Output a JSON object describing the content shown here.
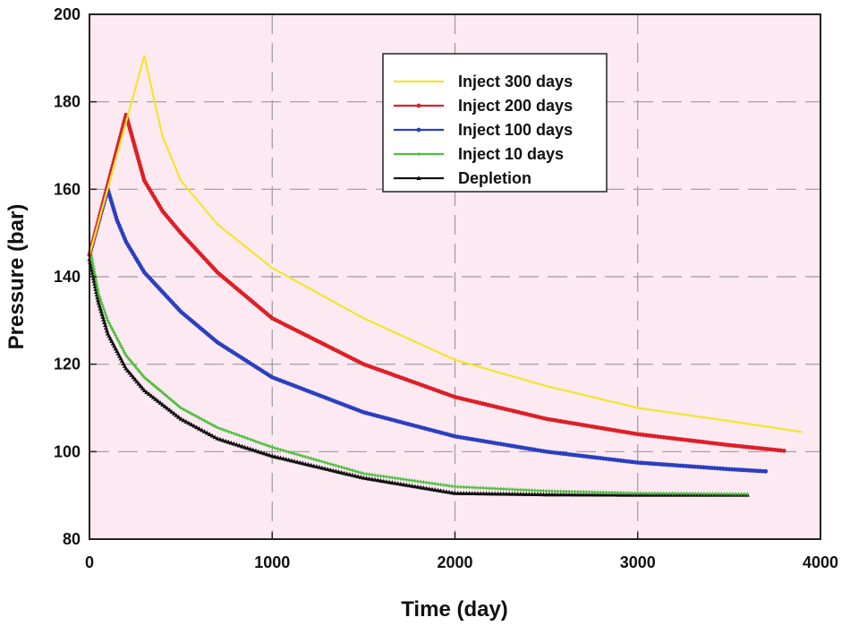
{
  "chart_data": {
    "type": "line",
    "title": "",
    "xlabel": "Time (day)",
    "ylabel": "Pressure (bar)",
    "xlim": [
      0,
      4000
    ],
    "ylim": [
      80,
      200
    ],
    "xticks": [
      0,
      1000,
      2000,
      3000,
      4000
    ],
    "yticks": [
      80,
      100,
      120,
      140,
      160,
      180,
      200
    ],
    "grid": true,
    "legend_position": "top-right",
    "plot_background": "#fde9f2",
    "series": [
      {
        "name": "Inject 300 days",
        "color": "#f2e62c",
        "marker": "none",
        "x": [
          0,
          300,
          400,
          500,
          700,
          1000,
          1500,
          2000,
          2500,
          3000,
          3500,
          3900
        ],
        "y": [
          145,
          190.5,
          172,
          162,
          152,
          142,
          130.5,
          121,
          115,
          110,
          107,
          104.5
        ]
      },
      {
        "name": "Inject 200 days",
        "color": "#dd1f26",
        "marker": "circle",
        "x": [
          0,
          200,
          300,
          400,
          500,
          700,
          1000,
          1500,
          2000,
          2500,
          3000,
          3500,
          3800
        ],
        "y": [
          145,
          177,
          162,
          155,
          150,
          141,
          130.5,
          120,
          112.5,
          107.5,
          104,
          101.5,
          100.2
        ]
      },
      {
        "name": "Inject 100 days",
        "color": "#2a3fbf",
        "marker": "circle",
        "x": [
          0,
          100,
          150,
          200,
          300,
          500,
          700,
          1000,
          1500,
          2000,
          2500,
          3000,
          3500,
          3700
        ],
        "y": [
          145,
          160,
          153,
          148,
          141,
          132,
          125,
          117,
          109,
          103.5,
          100,
          97.5,
          96,
          95.5
        ]
      },
      {
        "name": "Inject 10 days",
        "color": "#4cbf3d",
        "marker": "cross",
        "x": [
          0,
          10,
          50,
          100,
          200,
          300,
          500,
          700,
          1000,
          1500,
          2000,
          2500,
          3000,
          3600
        ],
        "y": [
          144,
          145,
          136,
          130,
          122,
          117,
          110,
          105.5,
          101,
          95,
          92,
          91,
          90.5,
          90.3
        ]
      },
      {
        "name": "Depletion",
        "color": "#111111",
        "marker": "triangle",
        "x": [
          0,
          50,
          100,
          200,
          300,
          500,
          700,
          1000,
          1500,
          2000,
          2500,
          3000,
          3600
        ],
        "y": [
          144,
          134,
          127,
          119,
          114,
          107.5,
          103,
          99,
          94,
          90.5,
          90.2,
          90.1,
          90.1
        ]
      }
    ]
  }
}
